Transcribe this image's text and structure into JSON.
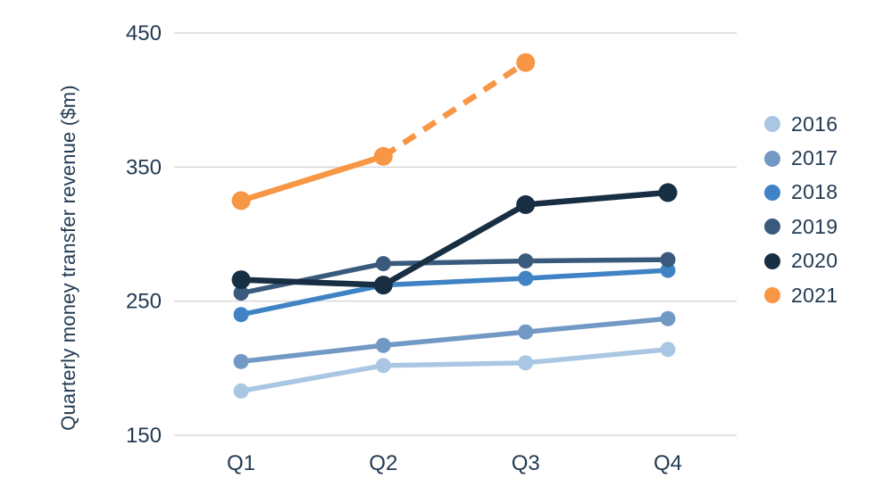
{
  "chart_data": {
    "type": "line",
    "title": "",
    "xlabel": "",
    "ylabel": "Quarterly money transfer revenue ($m)",
    "categories": [
      "Q1",
      "Q2",
      "Q3",
      "Q4"
    ],
    "yticks": [
      150,
      250,
      350,
      450
    ],
    "ylim": [
      150,
      450
    ],
    "grid": "horizontal-only",
    "legend_position": "right",
    "series": [
      {
        "name": "2016",
        "color": "#a9c7e3",
        "values": [
          183,
          202,
          204,
          214
        ],
        "emphasis": false
      },
      {
        "name": "2017",
        "color": "#7298c4",
        "values": [
          205,
          217,
          227,
          237
        ],
        "emphasis": false
      },
      {
        "name": "2018",
        "color": "#3f83c4",
        "values": [
          240,
          262,
          267,
          273
        ],
        "emphasis": false
      },
      {
        "name": "2019",
        "color": "#395a7d",
        "values": [
          256,
          278,
          280,
          281
        ],
        "emphasis": false
      },
      {
        "name": "2020",
        "color": "#182e43",
        "values": [
          266,
          262,
          322,
          331
        ],
        "emphasis": true
      },
      {
        "name": "2021",
        "color": "#f79645",
        "values": [
          325,
          358,
          428,
          null
        ],
        "emphasis": true,
        "dashed_segments": [
          1
        ]
      }
    ]
  },
  "colors": {
    "background": "#ffffff",
    "text": "#233b53",
    "gridline": "#d9d9d9",
    "accent": "#f79645"
  }
}
